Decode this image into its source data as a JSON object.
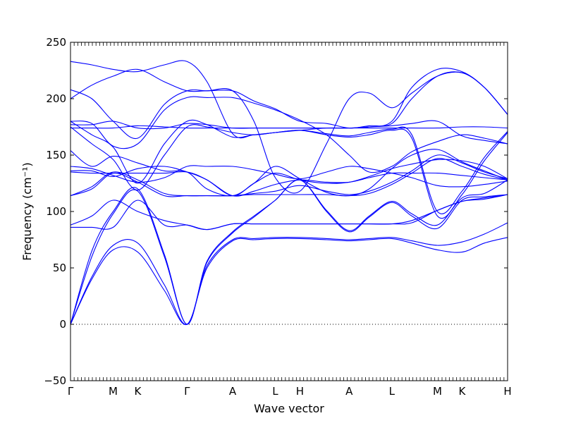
{
  "chart_data": {
    "type": "line",
    "xlabel": "Wave vector",
    "ylabel": "Frequency (cm⁻¹)",
    "ylim": [
      -50,
      250
    ],
    "yticks": [
      -50,
      0,
      50,
      100,
      150,
      200,
      250
    ],
    "zero_line": 0,
    "line_color": "#0000ff",
    "x_high_symmetry_points": [
      {
        "label": "Γ",
        "x": 0.0
      },
      {
        "label": "M",
        "x": 1.0
      },
      {
        "label": "K",
        "x": 1.577
      },
      {
        "label": "Γ",
        "x": 2.732
      },
      {
        "label": "A",
        "x": 3.8
      },
      {
        "label": "L",
        "x": 4.8
      },
      {
        "label": "H",
        "x": 5.377
      },
      {
        "label": "A",
        "x": 6.532
      },
      {
        "label": "L",
        "x": 7.532
      },
      {
        "label": "M",
        "x": 8.6
      },
      {
        "label": "K",
        "x": 9.177
      },
      {
        "label": "H",
        "x": 10.245
      }
    ],
    "series": [
      {
        "x": [
          0,
          0.5,
          1.0,
          1.577,
          2.2,
          2.732,
          3.2,
          3.8,
          4.3,
          4.8,
          5.377,
          6.0,
          6.532,
          7.0,
          7.532,
          8.0,
          8.6,
          9.177,
          9.7,
          10.245
        ],
        "values": [
          0,
          40,
          66,
          64,
          30,
          0,
          50,
          74,
          75,
          76,
          76,
          75,
          74,
          75,
          76,
          72,
          66,
          64,
          72,
          77
        ]
      },
      {
        "x": [
          0,
          0.5,
          1.0,
          1.577,
          2.2,
          2.732,
          3.2,
          3.8,
          4.3,
          4.8,
          5.377,
          6.0,
          6.532,
          7.0,
          7.532,
          8.0,
          8.6,
          9.177,
          9.7,
          10.245
        ],
        "values": [
          0,
          42,
          70,
          72,
          35,
          0,
          52,
          75,
          76,
          77,
          77,
          76,
          75,
          76,
          77,
          74,
          70,
          73,
          80,
          90
        ]
      },
      {
        "x": [
          0,
          0.5,
          1.0,
          1.577,
          2.2,
          2.732,
          3.2,
          3.8,
          4.3,
          4.8,
          5.377,
          6.0,
          6.532,
          7.0,
          7.532,
          8.0,
          8.6,
          9.177,
          9.7,
          10.245
        ],
        "values": [
          0,
          60,
          98,
          118,
          60,
          0,
          55,
          81,
          95,
          110,
          128,
          100,
          82,
          95,
          108,
          96,
          85,
          110,
          113,
          115
        ]
      },
      {
        "x": [
          0,
          0.5,
          1.0,
          1.577,
          2.2,
          2.732,
          3.2,
          3.8,
          4.3,
          4.8,
          5.377,
          6.0,
          6.532,
          7.0,
          7.532,
          8.0,
          8.6,
          9.177,
          9.7,
          10.245
        ],
        "values": [
          0,
          65,
          100,
          120,
          62,
          0,
          56,
          82,
          96,
          110,
          128,
          101,
          83,
          96,
          109,
          98,
          88,
          112,
          116,
          128
        ]
      },
      {
        "x": [
          0,
          0.5,
          1.0,
          1.577,
          2.2,
          2.732,
          3.2,
          3.8,
          4.3,
          4.8,
          5.377,
          6.0,
          6.532,
          7.0,
          7.532,
          8.0,
          8.6,
          9.177,
          9.7,
          10.245
        ],
        "values": [
          86,
          86,
          86,
          110,
          88,
          88,
          84,
          89,
          89,
          89,
          89,
          89,
          89,
          89,
          89,
          90,
          101,
          109,
          111,
          115
        ]
      },
      {
        "x": [
          0,
          0.5,
          1.0,
          1.577,
          2.2,
          2.732,
          3.2,
          3.8,
          4.3,
          4.8,
          5.377,
          6.0,
          6.532,
          7.0,
          7.532,
          8.0,
          8.6,
          9.177,
          9.7,
          10.245
        ],
        "values": [
          88,
          96,
          110,
          100,
          92,
          88,
          84,
          89,
          89,
          89,
          89,
          89,
          89,
          89,
          89,
          92,
          101,
          109,
          112,
          115
        ]
      },
      {
        "x": [
          0,
          0.5,
          1.0,
          1.577,
          2.2,
          2.732,
          3.2,
          3.8,
          4.3,
          4.8,
          5.377,
          6.0,
          6.532,
          7.0,
          7.532,
          8.0,
          8.6,
          9.177,
          9.7,
          10.245
        ],
        "values": [
          114,
          120,
          134,
          126,
          114,
          114,
          114,
          114,
          115,
          115,
          115,
          115,
          114,
          116,
          124,
          134,
          147,
          140,
          133,
          128
        ]
      },
      {
        "x": [
          0,
          0.5,
          1.0,
          1.577,
          2.2,
          2.732,
          3.2,
          3.8,
          4.3,
          4.8,
          5.377,
          6.0,
          6.532,
          7.0,
          7.532,
          8.0,
          8.6,
          9.177,
          9.7,
          10.245
        ],
        "values": [
          114,
          122,
          135,
          128,
          116,
          114,
          114,
          114,
          116,
          118,
          123,
          118,
          115,
          118,
          126,
          136,
          150,
          143,
          135,
          129
        ]
      },
      {
        "x": [
          0,
          0.5,
          1.0,
          1.577,
          2.2,
          2.732,
          3.2,
          3.8,
          4.3,
          4.8,
          5.377,
          6.0,
          6.532,
          7.0,
          7.532,
          8.0,
          8.6,
          9.177,
          9.7,
          10.245
        ],
        "values": [
          135,
          134,
          134,
          134,
          134,
          135,
          128,
          114,
          118,
          124,
          128,
          126,
          126,
          130,
          134,
          134,
          134,
          132,
          130,
          128
        ]
      },
      {
        "x": [
          0,
          0.5,
          1.0,
          1.577,
          2.2,
          2.732,
          3.2,
          3.8,
          4.3,
          4.8,
          5.377,
          6.0,
          6.532,
          7.0,
          7.532,
          8.0,
          8.6,
          9.177,
          9.7,
          10.245
        ],
        "values": [
          136,
          136,
          131,
          138,
          140,
          135,
          128,
          114,
          125,
          134,
          128,
          125,
          126,
          131,
          138,
          142,
          146,
          145,
          140,
          129
        ]
      },
      {
        "x": [
          0,
          0.5,
          1.0,
          1.577,
          2.2,
          2.732,
          3.2,
          3.8,
          4.3,
          4.8,
          5.377,
          6.0,
          6.532,
          7.0,
          7.532,
          8.0,
          8.6,
          9.177,
          9.7,
          10.245
        ],
        "values": [
          140,
          138,
          132,
          126,
          130,
          140,
          140,
          140,
          137,
          133,
          129,
          135,
          140,
          138,
          134,
          130,
          123,
          122,
          124,
          127
        ]
      },
      {
        "x": [
          0,
          0.5,
          1.0,
          1.577,
          2.2,
          2.732,
          3.2,
          3.8,
          4.3,
          4.8,
          5.377,
          6.0,
          6.532,
          7.0,
          7.532,
          8.0,
          8.6,
          9.177,
          9.7,
          10.245
        ],
        "values": [
          154,
          140,
          149,
          143,
          136,
          135,
          120,
          114,
          125,
          140,
          129,
          117,
          114,
          120,
          138,
          150,
          155,
          144,
          136,
          128
        ]
      },
      {
        "x": [
          0,
          0.5,
          1.0,
          1.577,
          2.2,
          2.732,
          3.2,
          3.8,
          4.3,
          4.8,
          5.377,
          6.0,
          6.532,
          7.0,
          7.532,
          8.0,
          8.6,
          9.177,
          9.7,
          10.245
        ],
        "values": [
          175,
          160,
          146,
          119,
          150,
          175,
          175,
          170,
          168,
          170,
          172,
          168,
          166,
          168,
          172,
          165,
          96,
          115,
          145,
          170
        ]
      },
      {
        "x": [
          0,
          0.5,
          1.0,
          1.577,
          2.2,
          2.732,
          3.2,
          3.8,
          4.3,
          4.8,
          5.377,
          6.0,
          6.532,
          7.0,
          7.532,
          8.0,
          8.6,
          9.177,
          9.7,
          10.245
        ],
        "values": [
          180,
          168,
          157,
          125,
          160,
          180,
          177,
          166,
          168,
          170,
          172,
          169,
          167,
          170,
          173,
          168,
          100,
          118,
          148,
          171
        ]
      },
      {
        "x": [
          0,
          0.5,
          1.0,
          1.577,
          2.2,
          2.732,
          3.2,
          3.8,
          4.3,
          4.8,
          5.377,
          6.0,
          6.532,
          7.0,
          7.532,
          8.0,
          8.6,
          9.177,
          9.7,
          10.245
        ],
        "values": [
          174,
          174,
          174,
          176,
          175,
          174,
          174,
          174,
          174,
          174,
          174,
          174,
          174,
          174,
          174,
          174,
          174,
          175,
          175,
          174
        ]
      },
      {
        "x": [
          0,
          0.5,
          1.0,
          1.577,
          2.2,
          2.732,
          3.2,
          3.8,
          4.3,
          4.8,
          5.377,
          6.0,
          6.532,
          7.0,
          7.532,
          8.0,
          8.6,
          9.177,
          9.7,
          10.245
        ],
        "values": [
          177,
          177,
          180,
          174,
          174,
          178,
          177,
          174,
          174,
          174,
          174,
          174,
          174,
          175,
          176,
          178,
          180,
          167,
          163,
          160
        ]
      },
      {
        "x": [
          0,
          0.5,
          1.0,
          1.577,
          2.2,
          2.732,
          3.2,
          3.8,
          4.3,
          4.8,
          5.377,
          6.0,
          6.532,
          7.0,
          7.532,
          8.0,
          8.6,
          9.177,
          9.7,
          10.245
        ],
        "values": [
          180,
          178,
          158,
          160,
          190,
          201,
          201,
          201,
          196,
          190,
          181,
          168,
          150,
          135,
          140,
          153,
          162,
          168,
          165,
          160
        ]
      },
      {
        "x": [
          0,
          0.5,
          1.0,
          1.577,
          2.2,
          2.732,
          3.2,
          3.8,
          4.3,
          4.8,
          5.377,
          6.0,
          6.532,
          7.0,
          7.532,
          8.0,
          8.6,
          9.177,
          9.7,
          10.245
        ],
        "values": [
          200,
          212,
          220,
          226,
          215,
          207,
          207,
          207,
          198,
          191,
          180,
          178,
          174,
          176,
          178,
          200,
          220,
          223,
          210,
          186
        ]
      },
      {
        "x": [
          0,
          0.5,
          1.0,
          1.577,
          2.2,
          2.732,
          3.2,
          3.8,
          4.3,
          4.8,
          5.377,
          6.0,
          6.532,
          7.0,
          7.532,
          8.0,
          8.6,
          9.177,
          9.7,
          10.245
        ],
        "values": [
          208,
          200,
          180,
          165,
          195,
          207,
          207,
          207,
          180,
          130,
          118,
          160,
          200,
          205,
          192,
          205,
          220,
          223,
          210,
          186
        ]
      },
      {
        "x": [
          0,
          0.5,
          1.0,
          1.577,
          2.2,
          2.732,
          3.2,
          3.8,
          4.3,
          4.8,
          5.377,
          6.0,
          6.532,
          7.0,
          7.532,
          8.0,
          8.6,
          9.177,
          9.7,
          10.245
        ],
        "values": [
          233,
          230,
          226,
          224,
          230,
          233,
          215,
          169,
          168,
          170,
          172,
          174,
          174,
          175,
          180,
          210,
          226,
          224,
          210,
          186
        ]
      }
    ]
  }
}
